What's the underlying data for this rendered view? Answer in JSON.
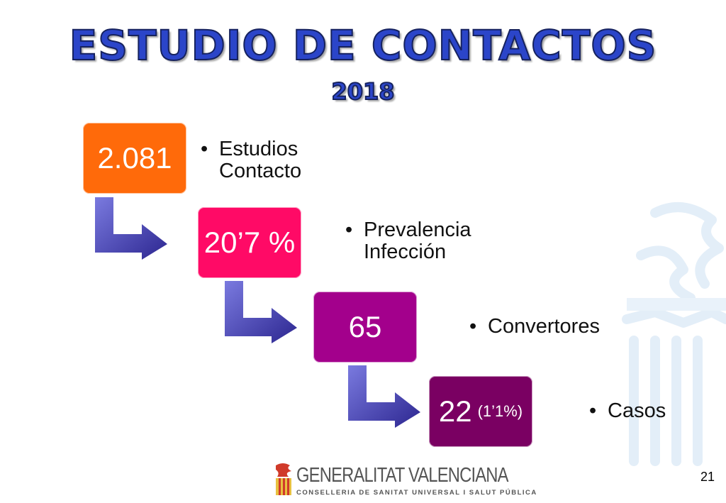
{
  "title": "ESTUDIO DE CONTACTOS",
  "year": "2018",
  "steps": [
    {
      "value": "2.081",
      "extra": "",
      "label_line1": "Estudios",
      "label_line2": "Contacto",
      "color": "#ff6a0a"
    },
    {
      "value": "20’7 %",
      "extra": "",
      "label_line1": "Prevalencia",
      "label_line2": "Infección",
      "color": "#ff0a66"
    },
    {
      "value": "65",
      "extra": "",
      "label_line1": "Convertores",
      "label_line2": "",
      "color": "#a3008c"
    },
    {
      "value": "22",
      "extra": "(1’1%)",
      "label_line1": "Casos",
      "label_line2": "",
      "color": "#7a0062"
    }
  ],
  "bullet_char": "•",
  "footer": {
    "org": "GENERALITAT VALENCIANA",
    "dept": "CONSELLERIA DE SANITAT UNIVERSAL I SALUT PÚBLICA"
  },
  "page_number": "21",
  "arrow_color": "#4a3fae"
}
